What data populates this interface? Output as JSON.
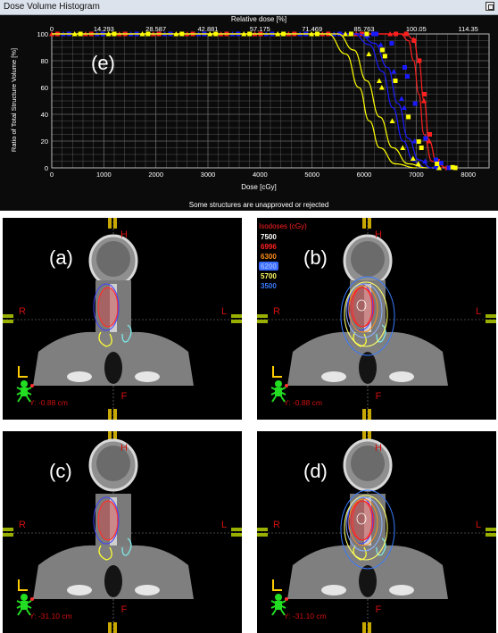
{
  "window": {
    "title": "Dose Volume Histogram"
  },
  "dvh": {
    "top_axis_label": "Relative dose [%]",
    "top_ticks": [
      "0",
      "14.293",
      "28.587",
      "42.881",
      "57.175",
      "71.469",
      "85.763",
      "100.05",
      "114.35"
    ],
    "bottom_ticks": [
      "0",
      "1000",
      "2000",
      "3000",
      "4000",
      "5000",
      "6000",
      "7000",
      "8000"
    ],
    "y_ticks": [
      "0",
      "20",
      "40",
      "60",
      "80",
      "100"
    ],
    "xlabel": "Dose [cGy]",
    "ylabel": "Ratio of Total Structure Volume [%]",
    "panel_label": "(e)",
    "footer": "Some structures are unapproved or rejected"
  },
  "chart_data": {
    "type": "line",
    "xlabel": "Dose [cGy]",
    "ylabel": "Ratio of Total Structure Volume [%]",
    "secondary_xlabel": "Relative dose [%]",
    "xlim": [
      0,
      8400
    ],
    "ylim": [
      0,
      100
    ],
    "grid": true,
    "series": [
      {
        "color": "#ff2020",
        "marker": "triangle",
        "points": [
          [
            0,
            100
          ],
          [
            6800,
            100
          ],
          [
            6950,
            96
          ],
          [
            7050,
            80
          ],
          [
            7150,
            50
          ],
          [
            7250,
            20
          ],
          [
            7400,
            3
          ],
          [
            7600,
            0
          ]
        ]
      },
      {
        "color": "#ff2020",
        "marker": "square",
        "points": [
          [
            0,
            100
          ],
          [
            6700,
            100
          ],
          [
            6850,
            95
          ],
          [
            6950,
            80
          ],
          [
            7050,
            55
          ],
          [
            7150,
            25
          ],
          [
            7300,
            5
          ],
          [
            7500,
            0
          ]
        ]
      },
      {
        "color": "#1a1aff",
        "marker": "triangle",
        "points": [
          [
            0,
            100
          ],
          [
            5800,
            100
          ],
          [
            6100,
            92
          ],
          [
            6350,
            72
          ],
          [
            6550,
            45
          ],
          [
            6750,
            20
          ],
          [
            6950,
            5
          ],
          [
            7200,
            0
          ]
        ]
      },
      {
        "color": "#1a1aff",
        "marker": "square",
        "points": [
          [
            0,
            100
          ],
          [
            5900,
            100
          ],
          [
            6200,
            93
          ],
          [
            6450,
            75
          ],
          [
            6650,
            48
          ],
          [
            6850,
            22
          ],
          [
            7050,
            6
          ],
          [
            7300,
            0
          ]
        ]
      },
      {
        "color": "#ffff00",
        "marker": "triangle",
        "points": [
          [
            0,
            100
          ],
          [
            5300,
            100
          ],
          [
            5650,
            85
          ],
          [
            5900,
            60
          ],
          [
            6100,
            35
          ],
          [
            6300,
            15
          ],
          [
            6600,
            3
          ],
          [
            7000,
            0
          ]
        ]
      },
      {
        "color": "#ffff00",
        "marker": "square",
        "points": [
          [
            0,
            100
          ],
          [
            5500,
            100
          ],
          [
            5800,
            88
          ],
          [
            6050,
            65
          ],
          [
            6300,
            38
          ],
          [
            6550,
            15
          ],
          [
            6850,
            3
          ],
          [
            7200,
            0
          ]
        ]
      }
    ]
  },
  "panels": [
    {
      "label": "(a)",
      "top_marker": "H",
      "bottom_marker": "F",
      "left_marker": "R",
      "right_marker": "L",
      "coord": "Y: -0.88 cm",
      "legend": false,
      "style": "contours"
    },
    {
      "label": "(b)",
      "top_marker": "H",
      "bottom_marker": "F",
      "left_marker": "R",
      "right_marker": "L",
      "coord": "Y: -0.88 cm",
      "legend": true,
      "style": "isodose"
    },
    {
      "label": "(c)",
      "top_marker": "H",
      "bottom_marker": "F",
      "left_marker": "R",
      "right_marker": "L",
      "coord": "Y: -31.10 cm",
      "legend": false,
      "style": "contours"
    },
    {
      "label": "(d)",
      "top_marker": "H",
      "bottom_marker": "F",
      "left_marker": "R",
      "right_marker": "L",
      "coord": "Y: -31.10 cm",
      "legend": false,
      "style": "isodose"
    }
  ],
  "isodose_legend": {
    "title": "Isodoses (cGy)",
    "items": [
      {
        "value": "7500",
        "color": "#ffffff"
      },
      {
        "value": "6996",
        "color": "#ff2020"
      },
      {
        "value": "6300",
        "color": "#ff8c1a"
      },
      {
        "value": "6200",
        "color": "#8fb0ff"
      },
      {
        "value": "5700",
        "color": "#ffff66"
      },
      {
        "value": "3500",
        "color": "#3a7bff"
      }
    ]
  },
  "colors": {
    "background": "#000000",
    "crosshair": "#888888",
    "marker_text": "#d01010",
    "accent_yellow": "#c8a800"
  }
}
